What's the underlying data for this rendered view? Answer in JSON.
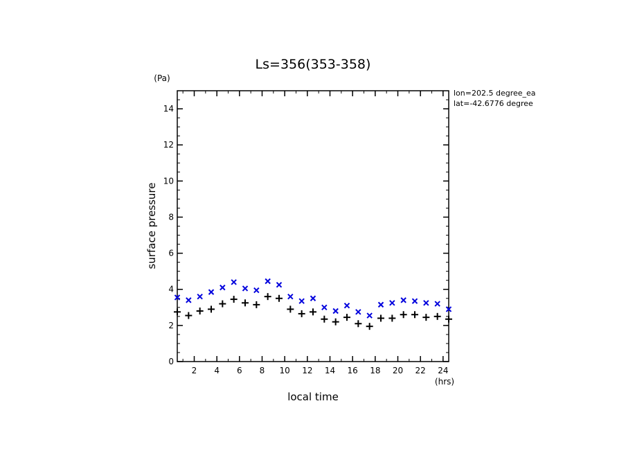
{
  "chart_data": {
    "type": "scatter",
    "title": "Ls=356(353-358)",
    "xlabel": "local time",
    "xunit": "(hrs)",
    "ylabel": "surface pressure",
    "yunit": "(Pa)",
    "xlim": [
      0.5,
      24.5
    ],
    "ylim": [
      0,
      15
    ],
    "xticks": [
      2,
      4,
      6,
      8,
      10,
      12,
      14,
      16,
      18,
      20,
      22,
      24
    ],
    "yticks": [
      0,
      2,
      4,
      6,
      8,
      10,
      12,
      14
    ],
    "annotations": [
      "lon=202.5 degree_ea",
      "lat=-42.6776 degree"
    ],
    "series": [
      {
        "marker": "x",
        "color": "#0000dd",
        "x": [
          0.5,
          1.5,
          2.5,
          3.5,
          4.5,
          5.5,
          6.5,
          7.5,
          8.5,
          9.5,
          10.5,
          11.5,
          12.5,
          13.5,
          14.5,
          15.5,
          16.5,
          17.5,
          18.5,
          19.5,
          20.5,
          21.5,
          22.5,
          23.5,
          24.5
        ],
        "y": [
          3.55,
          3.4,
          3.6,
          3.85,
          4.1,
          4.4,
          4.05,
          3.95,
          4.45,
          4.25,
          3.6,
          3.35,
          3.5,
          3.0,
          2.8,
          3.1,
          2.75,
          2.55,
          3.15,
          3.25,
          3.4,
          3.35,
          3.25,
          3.2,
          2.9
        ]
      },
      {
        "marker": "+",
        "color": "#000000",
        "x": [
          0.5,
          1.5,
          2.5,
          3.5,
          4.5,
          5.5,
          6.5,
          7.5,
          8.5,
          9.5,
          10.5,
          11.5,
          12.5,
          13.5,
          14.5,
          15.5,
          16.5,
          17.5,
          18.5,
          19.5,
          20.5,
          21.5,
          22.5,
          23.5,
          24.5
        ],
        "y": [
          2.75,
          2.55,
          2.8,
          2.9,
          3.2,
          3.45,
          3.25,
          3.15,
          3.6,
          3.5,
          2.9,
          2.65,
          2.75,
          2.35,
          2.2,
          2.45,
          2.1,
          1.95,
          2.4,
          2.4,
          2.6,
          2.6,
          2.45,
          2.5,
          2.35
        ]
      }
    ]
  }
}
